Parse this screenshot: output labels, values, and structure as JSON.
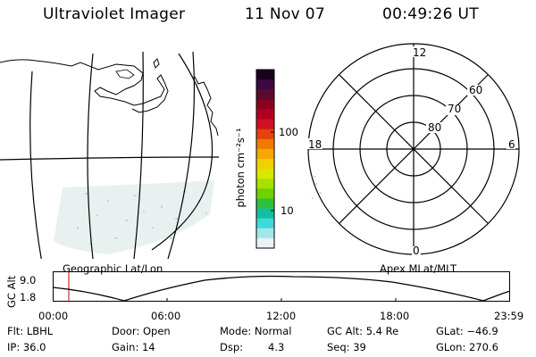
{
  "header": {
    "instrument": "Ultraviolet Imager",
    "date": "11 Nov 07",
    "time": "00:49:26 UT"
  },
  "colorbar": {
    "unit_label": "photon cm⁻²s⁻¹",
    "ticks": [
      "100",
      "10"
    ],
    "colors": [
      "#1a0020",
      "#3a0a40",
      "#5a0a30",
      "#8a0020",
      "#b00020",
      "#d01020",
      "#e84010",
      "#f07a00",
      "#f4a800",
      "#f0d000",
      "#d8e800",
      "#a8e000",
      "#70d000",
      "#30c040",
      "#10c0a0",
      "#40d8d8",
      "#a0e8e8",
      "#e8f4f4"
    ]
  },
  "map_panel": {
    "label": "Geographic Lat/Lon"
  },
  "polar_panel": {
    "label": "Apex MLat/MLT",
    "mlt_labels": {
      "top": "12",
      "left": "18",
      "right": "6",
      "bottom": "0"
    },
    "lat_labels": [
      "60",
      "70",
      "80"
    ]
  },
  "altitude_plot": {
    "y_label": "GC Alt",
    "y_ticks": [
      "9.0",
      "1.8"
    ],
    "x_ticks": [
      "00:00",
      "06:00",
      "12:00",
      "18:00",
      "23:59"
    ],
    "marker_time": "00:49"
  },
  "footer": {
    "row1": {
      "flt": "Flt: LBHL",
      "door": "Door: Open",
      "mode": "Mode: Normal",
      "gc_alt": "GC Alt: 5.4 Re",
      "glat": "GLat: −46.9"
    },
    "row2": {
      "ip": "IP: 36.0",
      "gain": "Gain: 14",
      "dsp_label": "Dsp:",
      "dsp_value": "4.3",
      "seq": "Seq: 39",
      "glon": "GLon: 270.6"
    }
  }
}
